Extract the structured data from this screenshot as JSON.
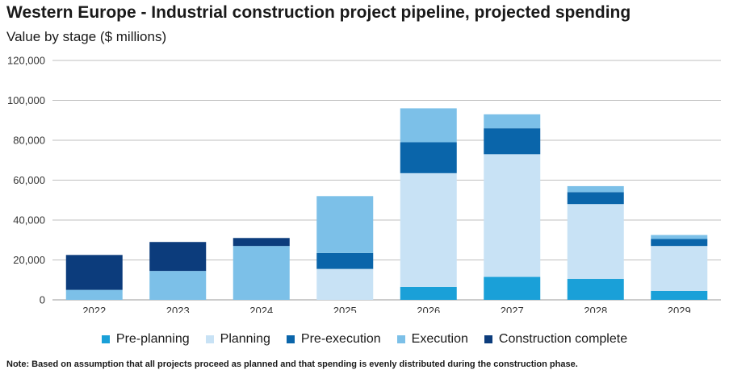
{
  "header": {
    "title": "Western Europe - Industrial construction project pipeline, projected spending",
    "subtitle": "Value by stage ($ millions)"
  },
  "footer": {
    "note": "Note: Based on assumption that all projects proceed as planned and that spending is evenly distributed during the construction phase."
  },
  "chart_data": {
    "type": "bar",
    "stacked": true,
    "title": "Western Europe - Industrial construction project pipeline, projected spending",
    "subtitle": "Value by stage ($ millions)",
    "categories": [
      "2022",
      "2023",
      "2024",
      "2025",
      "2026",
      "2027",
      "2028",
      "2029"
    ],
    "ylim": [
      0,
      120000
    ],
    "yticks": [
      0,
      20000,
      40000,
      60000,
      80000,
      100000,
      120000
    ],
    "ytick_labels": [
      "0",
      "20,000",
      "40,000",
      "60,000",
      "80,000",
      "100,000",
      "120,000"
    ],
    "grid": true,
    "legend_position": "bottom",
    "series": [
      {
        "name": "Pre-planning",
        "color": "#1aa0d8",
        "values": [
          0,
          0,
          0,
          0,
          6500,
          11500,
          10500,
          4500
        ]
      },
      {
        "name": "Planning",
        "color": "#c8e2f5",
        "values": [
          0,
          0,
          0,
          15500,
          57000,
          61500,
          37500,
          22500
        ]
      },
      {
        "name": "Pre-execution",
        "color": "#0a65aa",
        "values": [
          0,
          0,
          0,
          8000,
          15500,
          13000,
          6000,
          3500
        ]
      },
      {
        "name": "Execution",
        "color": "#7cc0e8",
        "values": [
          5000,
          14500,
          27000,
          28500,
          17000,
          7000,
          3000,
          2000
        ]
      },
      {
        "name": "Construction complete",
        "color": "#0c3c7c",
        "values": [
          17500,
          14500,
          4000,
          0,
          0,
          0,
          0,
          0
        ]
      }
    ]
  }
}
